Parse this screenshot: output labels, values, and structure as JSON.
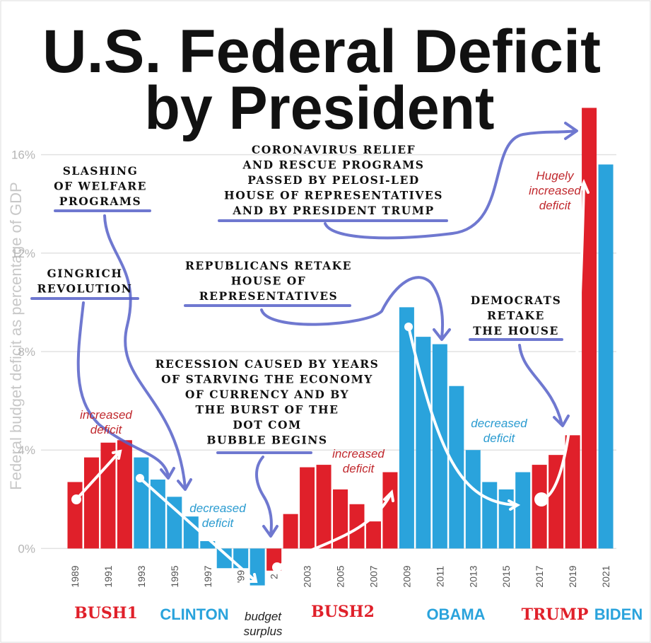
{
  "chart_data": {
    "type": "bar",
    "title": [
      "U.S. Federal Deficit",
      "by President"
    ],
    "y_axis_label": "Federal budget deficit as percentage of GDP",
    "categories": [
      "1989",
      null,
      "1991",
      null,
      "1993",
      null,
      "1995",
      null,
      "1997",
      null,
      "'99",
      null,
      "2",
      null,
      "2003",
      null,
      "2005",
      null,
      "2007",
      null,
      "2009",
      null,
      "2011",
      null,
      "2013",
      null,
      "2015",
      null,
      "2017",
      null,
      "2019",
      null,
      "2021"
    ],
    "values": [
      2.7,
      3.7,
      4.3,
      4.4,
      3.7,
      2.8,
      2.1,
      1.3,
      0.3,
      -0.8,
      -0.8,
      -1.5,
      -0.9,
      1.4,
      3.3,
      3.4,
      2.4,
      1.8,
      1.1,
      3.1,
      9.8,
      8.6,
      8.3,
      6.6,
      4.0,
      2.7,
      2.4,
      3.1,
      3.4,
      3.8,
      4.6,
      17.9,
      15.6
    ],
    "colors": [
      "#e0202a",
      "#e0202a",
      "#e0202a",
      "#e0202a",
      "#2aa3dc",
      "#2aa3dc",
      "#2aa3dc",
      "#2aa3dc",
      "#2aa3dc",
      "#2aa3dc",
      "#2aa3dc",
      "#2aa3dc",
      "#e0202a",
      "#e0202a",
      "#e0202a",
      "#e0202a",
      "#e0202a",
      "#e0202a",
      "#e0202a",
      "#e0202a",
      "#2aa3dc",
      "#2aa3dc",
      "#2aa3dc",
      "#2aa3dc",
      "#2aa3dc",
      "#2aa3dc",
      "#2aa3dc",
      "#2aa3dc",
      "#e0202a",
      "#e0202a",
      "#e0202a",
      "#e0202a",
      "#2aa3dc"
    ],
    "ylim": [
      -2,
      18
    ],
    "yticks": [
      {
        "value": 0,
        "label": "0%"
      },
      {
        "value": 4,
        "label": "4%"
      },
      {
        "value": 8,
        "label": "8%"
      },
      {
        "value": 12,
        "label": "12%"
      },
      {
        "value": 16,
        "label": "16%"
      }
    ],
    "grid": true,
    "presidents": [
      {
        "name": "BUSH1",
        "color": "#e0202a"
      },
      {
        "name": "CLINTON",
        "color": "#2aa3dc"
      },
      {
        "name": "BUSH2",
        "color": "#e0202a"
      },
      {
        "name": "OBAMA",
        "color": "#2aa3dc"
      },
      {
        "name": "TRUMP",
        "color": "#e0202a"
      },
      {
        "name": "BIDEN",
        "color": "#2aa3dc"
      }
    ],
    "notes": [
      {
        "lines": [
          "increased",
          "deficit"
        ],
        "color": "#c0282d"
      },
      {
        "lines": [
          "decreased",
          "deficit"
        ],
        "color": "#2a9bd0"
      },
      {
        "lines": [
          "increased",
          "deficit"
        ],
        "color": "#c0282d"
      },
      {
        "lines": [
          "decreased",
          "deficit"
        ],
        "color": "#2a9bd0"
      },
      {
        "lines": [
          "Hugely",
          "increased",
          "deficit"
        ],
        "color": "#c0282d"
      },
      {
        "lines": [
          "budget",
          "surplus"
        ],
        "color": "#222222"
      }
    ],
    "annotations": [
      {
        "lines": [
          "SLASHING",
          "OF WELFARE",
          "PROGRAMS"
        ]
      },
      {
        "lines": [
          "GINGRICH",
          "REVOLUTION"
        ]
      },
      {
        "lines": [
          "CORONAVIRUS RELIEF",
          "AND RESCUE PROGRAMS",
          "PASSED BY PELOSI-LED",
          "HOUSE OF REPRESENTATIVES",
          "AND BY PRESIDENT TRUMP"
        ]
      },
      {
        "lines": [
          "REPUBLICANS RETAKE",
          "HOUSE OF",
          "REPRESENTATIVES"
        ]
      },
      {
        "lines": [
          "DEMOCRATS",
          "RETAKE",
          "THE HOUSE"
        ]
      },
      {
        "lines": [
          "RECESSION CAUSED BY YEARS",
          "OF STARVING THE ECONOMY",
          "OF CURRENCY AND BY",
          "THE BURST OF THE",
          "DOT COM",
          "BUBBLE BEGINS"
        ]
      }
    ]
  }
}
